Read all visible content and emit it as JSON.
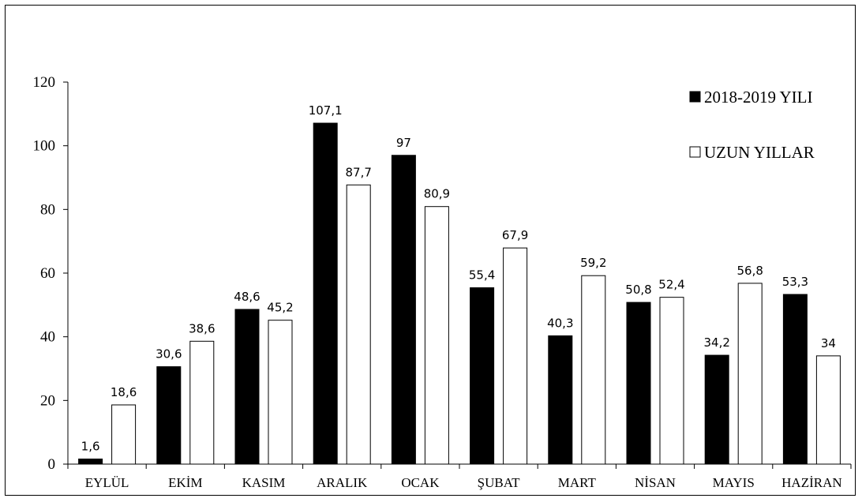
{
  "chart_data": {
    "type": "bar",
    "categories": [
      "EYLÜL",
      "EKİM",
      "KASIM",
      "ARALIK",
      "OCAK",
      "ŞUBAT",
      "MART",
      "NİSAN",
      "MAYIS",
      "HAZİRAN"
    ],
    "series": [
      {
        "name": "2018-2019 YILI",
        "color": "#000000",
        "values": [
          1.6,
          30.6,
          48.6,
          107.1,
          97,
          55.4,
          40.3,
          50.8,
          34.2,
          53.3
        ],
        "labels": [
          "1,6",
          "30,6",
          "48,6",
          "107,1",
          "97",
          "55,4",
          "40,3",
          "50,8",
          "34,2",
          "53,3"
        ]
      },
      {
        "name": "UZUN YILLAR",
        "color": "#ffffff",
        "values": [
          18.6,
          38.6,
          45.2,
          87.7,
          80.9,
          67.9,
          59.2,
          52.4,
          56.8,
          34
        ],
        "labels": [
          "18,6",
          "38,6",
          "45,2",
          "87,7",
          "80,9",
          "67,9",
          "59,2",
          "52,4",
          "56,8",
          "34"
        ]
      }
    ],
    "yticks": [
      "0",
      "20",
      "40",
      "60",
      "80",
      "100",
      "120"
    ],
    "ylim": [
      0,
      120
    ],
    "title": "",
    "xlabel": "",
    "ylabel": "",
    "legend_position": "top-right",
    "grid": false
  }
}
